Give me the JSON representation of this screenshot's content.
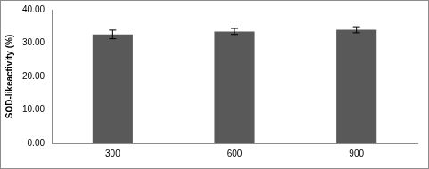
{
  "chart_data": {
    "type": "bar",
    "y_label": "SOD-likeactivity (%)",
    "categories": [
      "300",
      "600",
      "900"
    ],
    "values": [
      32.6,
      33.5,
      34.0
    ],
    "errors": [
      1.3,
      0.9,
      0.9
    ],
    "color": "#595959",
    "ylim": [
      0,
      40
    ],
    "yticks": [
      {
        "value": 0,
        "label": "0.00"
      },
      {
        "value": 10,
        "label": "10.00"
      },
      {
        "value": 20,
        "label": "20.00"
      },
      {
        "value": 30,
        "label": "30.00"
      },
      {
        "value": 40,
        "label": "40.00"
      }
    ],
    "grid": false
  }
}
